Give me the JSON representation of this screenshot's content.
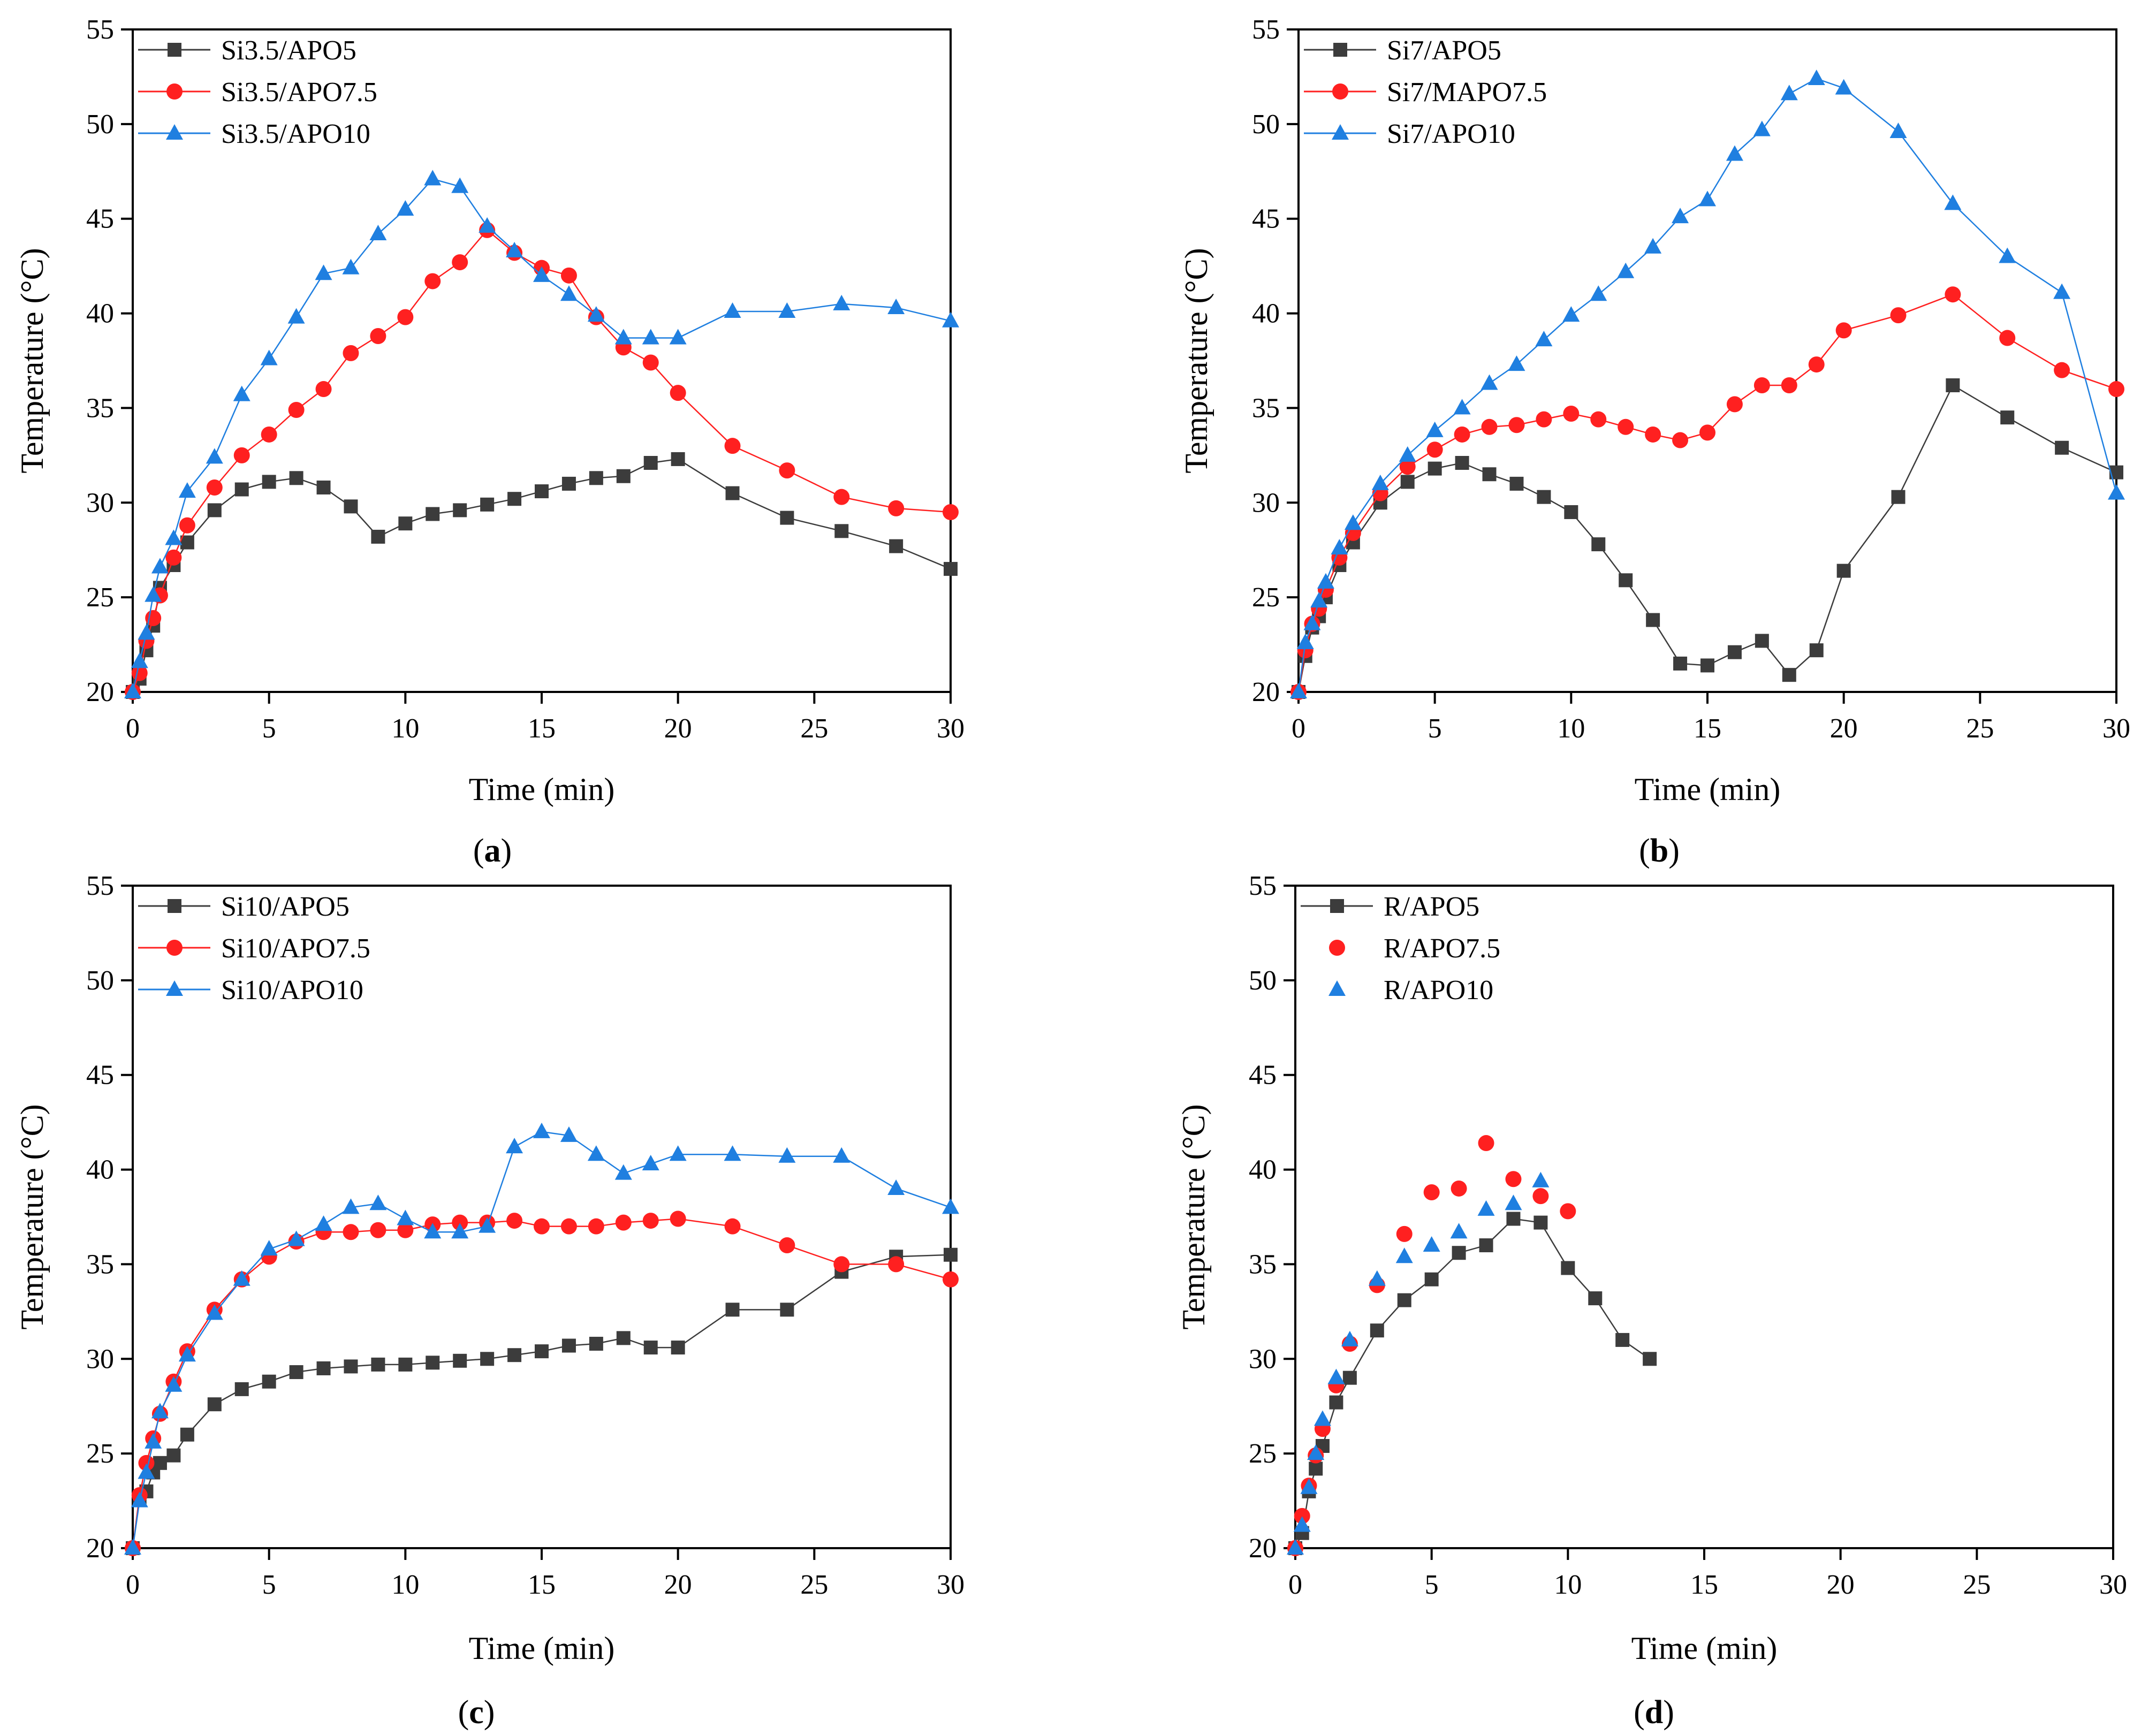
{
  "figure": {
    "panels": [
      {
        "label": "(a)",
        "label_letter": "a"
      },
      {
        "label": "(b)",
        "label_letter": "b"
      },
      {
        "label": "(c)",
        "label_letter": "c"
      },
      {
        "label": "(d)",
        "label_letter": "d"
      }
    ]
  },
  "styles": {
    "series_colors": [
      "#3c3c3c",
      "#ff2020",
      "#1f7fe0"
    ],
    "marker_shapes": [
      "square",
      "circle",
      "triangle"
    ]
  },
  "chart_data": [
    {
      "type": "line",
      "panel": "a",
      "xlabel": "Time (min)",
      "ylabel": "Temperature (°C)",
      "xlim": [
        0,
        30
      ],
      "ylim": [
        20,
        55
      ],
      "xticks": [
        0,
        5,
        10,
        15,
        20,
        25,
        30
      ],
      "yticks": [
        20,
        25,
        30,
        35,
        40,
        45,
        50,
        55
      ],
      "legend_position": "top-left",
      "series": [
        {
          "name": "Si3.5/APO5",
          "line": true,
          "x": [
            0,
            0.25,
            0.5,
            0.75,
            1,
            1.5,
            2,
            3,
            4,
            5,
            6,
            7,
            8,
            9,
            10,
            11,
            12,
            13,
            14,
            15,
            16,
            17,
            18,
            19,
            20,
            22,
            24,
            26,
            28,
            30
          ],
          "y": [
            20,
            20.7,
            22.2,
            23.5,
            25.5,
            26.7,
            27.9,
            29.6,
            30.7,
            31.1,
            31.3,
            30.8,
            29.8,
            28.2,
            28.9,
            29.4,
            29.6,
            29.9,
            30.2,
            30.6,
            31.0,
            31.3,
            31.4,
            32.1,
            32.3,
            30.5,
            29.2,
            28.5,
            27.7,
            26.5
          ]
        },
        {
          "name": "Si3.5/APO7.5",
          "line": true,
          "x": [
            0,
            0.25,
            0.5,
            0.75,
            1,
            1.5,
            2,
            3,
            4,
            5,
            6,
            7,
            8,
            9,
            10,
            11,
            12,
            13,
            14,
            15,
            16,
            17,
            18,
            19,
            20,
            22,
            24,
            26,
            28,
            30
          ],
          "y": [
            20,
            21.0,
            22.7,
            23.9,
            25.1,
            27.1,
            28.8,
            30.8,
            32.5,
            33.6,
            34.9,
            36.0,
            37.9,
            38.8,
            39.8,
            41.7,
            42.7,
            44.4,
            43.2,
            42.4,
            42.0,
            39.8,
            38.2,
            37.4,
            35.8,
            33.0,
            31.7,
            30.3,
            29.7,
            29.5
          ]
        },
        {
          "name": "Si3.5/APO10",
          "line": true,
          "x": [
            0,
            0.25,
            0.5,
            0.75,
            1,
            1.5,
            2,
            3,
            4,
            5,
            6,
            7,
            8,
            9,
            10,
            11,
            12,
            13,
            14,
            15,
            16,
            17,
            18,
            19,
            20,
            22,
            24,
            26,
            28,
            30
          ],
          "y": [
            20,
            21.6,
            23.1,
            25.1,
            26.6,
            28.1,
            30.6,
            32.4,
            35.7,
            37.6,
            39.8,
            42.1,
            42.4,
            44.2,
            45.5,
            47.1,
            46.7,
            44.6,
            43.3,
            42.0,
            41.0,
            39.9,
            38.7,
            38.7,
            38.7,
            40.1,
            40.1,
            40.5,
            40.3,
            39.6
          ]
        }
      ]
    },
    {
      "type": "line",
      "panel": "b",
      "xlabel": "Time (min)",
      "ylabel": "Temperature (°C)",
      "xlim": [
        0,
        30
      ],
      "ylim": [
        20,
        55
      ],
      "xticks": [
        0,
        5,
        10,
        15,
        20,
        25,
        30
      ],
      "yticks": [
        20,
        25,
        30,
        35,
        40,
        45,
        50,
        55
      ],
      "legend_position": "top-left",
      "series": [
        {
          "name": "Si7/APO5",
          "line": true,
          "x": [
            0,
            0.25,
            0.5,
            0.75,
            1,
            1.5,
            2,
            3,
            4,
            5,
            6,
            7,
            8,
            9,
            10,
            11,
            12,
            13,
            14,
            15,
            16,
            17,
            18,
            19,
            20,
            22,
            24,
            26,
            28,
            30
          ],
          "y": [
            20,
            21.9,
            23.4,
            24.0,
            25.0,
            26.7,
            27.9,
            30.0,
            31.1,
            31.8,
            32.1,
            31.5,
            31.0,
            30.3,
            29.5,
            27.8,
            25.9,
            23.8,
            21.5,
            21.4,
            22.1,
            22.7,
            20.9,
            22.2,
            26.4,
            30.3,
            36.2,
            34.5,
            32.9,
            31.6
          ]
        },
        {
          "name": "Si7/MAPO7.5",
          "line": true,
          "x": [
            0,
            0.25,
            0.5,
            0.75,
            1,
            1.5,
            2,
            3,
            4,
            5,
            6,
            7,
            8,
            9,
            10,
            11,
            12,
            13,
            14,
            15,
            16,
            17,
            18,
            19,
            20,
            22,
            24,
            26,
            28,
            30
          ],
          "y": [
            20,
            22.2,
            23.6,
            24.4,
            25.4,
            27.1,
            28.4,
            30.5,
            31.9,
            32.8,
            33.6,
            34.0,
            34.1,
            34.4,
            34.7,
            34.4,
            34.0,
            33.6,
            33.3,
            33.7,
            35.2,
            36.2,
            36.2,
            37.3,
            39.1,
            39.9,
            41.0,
            38.7,
            37.0,
            36.0
          ]
        },
        {
          "name": "Si7/APO10",
          "line": true,
          "x": [
            0,
            0.25,
            0.5,
            0.75,
            1,
            1.5,
            2,
            3,
            4,
            5,
            6,
            7,
            8,
            9,
            10,
            11,
            12,
            13,
            14,
            15,
            16,
            17,
            18,
            19,
            20,
            22,
            24,
            26,
            28,
            30
          ],
          "y": [
            20,
            22.6,
            23.6,
            24.8,
            25.8,
            27.6,
            28.9,
            31.0,
            32.5,
            33.8,
            35.0,
            36.3,
            37.3,
            38.6,
            39.9,
            41.0,
            42.2,
            43.5,
            45.1,
            46.0,
            48.4,
            49.7,
            51.6,
            52.4,
            51.9,
            49.6,
            45.8,
            43.0,
            41.1,
            30.5
          ]
        }
      ]
    },
    {
      "type": "line",
      "panel": "c",
      "xlabel": "Time (min)",
      "ylabel": "Temperature (°C)",
      "xlim": [
        0,
        30
      ],
      "ylim": [
        20,
        55
      ],
      "xticks": [
        0,
        5,
        10,
        15,
        20,
        25,
        30
      ],
      "yticks": [
        20,
        25,
        30,
        35,
        40,
        45,
        50,
        55
      ],
      "legend_position": "top-left",
      "series": [
        {
          "name": "Si10/APO5",
          "line": true,
          "x": [
            0,
            0.25,
            0.5,
            0.75,
            1,
            1.5,
            2,
            3,
            4,
            5,
            6,
            7,
            8,
            9,
            10,
            11,
            12,
            13,
            14,
            15,
            16,
            17,
            18,
            19,
            20,
            22,
            24,
            26,
            28,
            30
          ],
          "y": [
            20,
            22.7,
            23.0,
            24.0,
            24.5,
            24.9,
            26.0,
            27.6,
            28.4,
            28.8,
            29.3,
            29.5,
            29.6,
            29.7,
            29.7,
            29.8,
            29.9,
            30.0,
            30.2,
            30.4,
            30.7,
            30.8,
            31.1,
            30.6,
            30.6,
            32.6,
            32.6,
            34.6,
            35.4,
            35.5
          ]
        },
        {
          "name": "Si10/APO7.5",
          "line": true,
          "x": [
            0,
            0.25,
            0.5,
            0.75,
            1,
            1.5,
            2,
            3,
            4,
            5,
            6,
            7,
            8,
            9,
            10,
            11,
            12,
            13,
            14,
            15,
            16,
            17,
            18,
            19,
            20,
            22,
            24,
            26,
            28,
            30
          ],
          "y": [
            20,
            22.8,
            24.5,
            25.8,
            27.1,
            28.8,
            30.4,
            32.6,
            34.2,
            35.4,
            36.2,
            36.7,
            36.7,
            36.8,
            36.8,
            37.1,
            37.2,
            37.2,
            37.3,
            37.0,
            37.0,
            37.0,
            37.2,
            37.3,
            37.4,
            37.0,
            36.0,
            35.0,
            35.0,
            34.2
          ]
        },
        {
          "name": "Si10/APO10",
          "line": true,
          "x": [
            0,
            0.25,
            0.5,
            0.75,
            1,
            1.5,
            2,
            3,
            4,
            5,
            6,
            7,
            8,
            9,
            10,
            11,
            12,
            13,
            14,
            15,
            16,
            17,
            18,
            19,
            20,
            22,
            24,
            26,
            28,
            30
          ],
          "y": [
            20,
            22.5,
            24.0,
            25.6,
            27.2,
            28.6,
            30.2,
            32.4,
            34.2,
            35.8,
            36.3,
            37.1,
            38.0,
            38.2,
            37.4,
            36.7,
            36.7,
            37.0,
            41.2,
            42.0,
            41.8,
            40.8,
            39.8,
            40.3,
            40.8,
            40.8,
            40.7,
            40.7,
            39.0,
            38.0
          ]
        }
      ]
    },
    {
      "type": "scatter",
      "panel": "d",
      "xlabel": "Time (min)",
      "ylabel": "Temperature (°C)",
      "xlim": [
        0,
        30
      ],
      "ylim": [
        20,
        55
      ],
      "xticks": [
        0,
        5,
        10,
        15,
        20,
        25,
        30
      ],
      "yticks": [
        20,
        25,
        30,
        35,
        40,
        45,
        50,
        55
      ],
      "legend_position": "top-left",
      "series": [
        {
          "name": "R/APO5",
          "line": true,
          "x": [
            0,
            0.25,
            0.5,
            0.75,
            1,
            1.5,
            2,
            3,
            4,
            5,
            6,
            7,
            8,
            9,
            10,
            11,
            12,
            13
          ],
          "y": [
            20,
            20.8,
            23.0,
            24.2,
            25.4,
            27.7,
            29.0,
            31.5,
            33.1,
            34.2,
            35.6,
            36.0,
            37.4,
            37.2,
            34.8,
            33.2,
            31.0,
            30.0
          ]
        },
        {
          "name": "R/APO7.5",
          "line": false,
          "x": [
            0,
            0.25,
            0.5,
            0.75,
            1,
            1.5,
            2,
            3,
            4,
            5,
            6,
            7,
            8,
            9,
            10
          ],
          "y": [
            20,
            21.7,
            23.3,
            24.9,
            26.3,
            28.6,
            30.8,
            33.9,
            36.6,
            38.8,
            39.0,
            41.4,
            39.5,
            38.6,
            37.8
          ]
        },
        {
          "name": "R/APO10",
          "line": false,
          "x": [
            0,
            0.25,
            0.5,
            0.75,
            1,
            1.5,
            2,
            3,
            4,
            5,
            6,
            7,
            8,
            9
          ],
          "y": [
            20,
            21.2,
            23.2,
            25.0,
            26.8,
            29.0,
            31.0,
            34.2,
            35.4,
            36.0,
            36.7,
            37.9,
            38.2,
            39.4
          ]
        }
      ]
    }
  ]
}
